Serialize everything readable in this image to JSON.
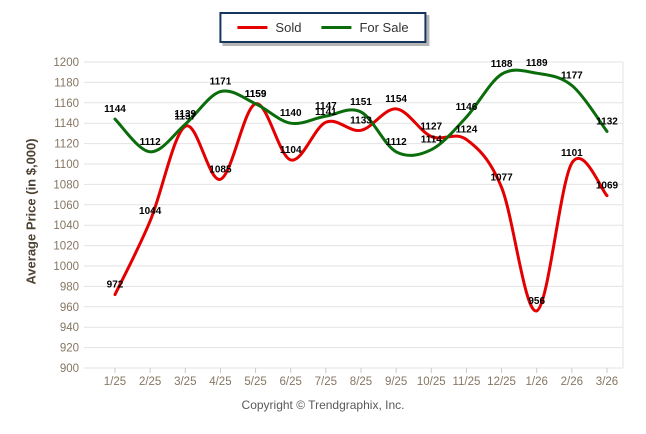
{
  "axis": {
    "y_title": "Average Price (in $,000)"
  },
  "footer": {
    "copyright": "Copyright © Trendgraphix, Inc."
  },
  "colors": {
    "sold_line": "#e40000",
    "for_sale_line": "#0a6c0a",
    "legend_border": "#17365d",
    "grid": "#e3e3e3",
    "tick_label": "#857663",
    "data_label": "#000000"
  },
  "chart_data": {
    "type": "line",
    "title": "",
    "xlabel": "",
    "ylabel": "Average Price (in $,000)",
    "ylim": [
      900,
      1200
    ],
    "ytick_step": 20,
    "grid": "horizontal",
    "legend_position": "top-center",
    "categories": [
      "1/25",
      "2/25",
      "3/25",
      "4/25",
      "5/25",
      "6/25",
      "7/25",
      "8/25",
      "9/25",
      "10/25",
      "11/25",
      "12/25",
      "1/26",
      "2/26",
      "3/26"
    ],
    "series": [
      {
        "name": "Sold",
        "color": "#e40000",
        "values": [
          972,
          1044,
          1137,
          1085,
          1159,
          1104,
          1141,
          1133,
          1154,
          1127,
          1124,
          1077,
          956,
          1101,
          1069
        ]
      },
      {
        "name": "For Sale",
        "color": "#0a6c0a",
        "values": [
          1144,
          1112,
          1139,
          1171,
          1159,
          1140,
          1147,
          1151,
          1112,
          1114,
          1146,
          1188,
          1189,
          1177,
          1132
        ]
      }
    ]
  }
}
